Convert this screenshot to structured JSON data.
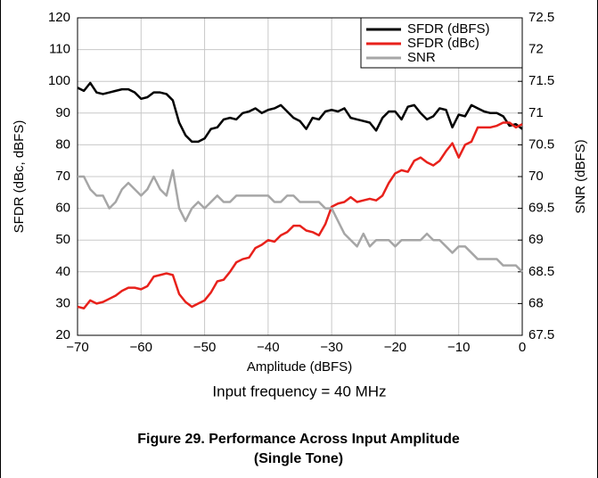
{
  "chart_data": {
    "type": "line",
    "title": "Figure 29. Performance Across Input Amplitude (Single Tone)",
    "subtitle": "Input frequency = 40 MHz",
    "xlabel": "Amplitude (dBFS)",
    "ylabel": "SFDR (dBc, dBFS)",
    "y2label": "SNR (dBFS)",
    "x": [
      -70,
      -69,
      -68,
      -67,
      -66,
      -65,
      -64,
      -63,
      -62,
      -61,
      -60,
      -59,
      -58,
      -57,
      -56,
      -55,
      -54,
      -53,
      -52,
      -51,
      -50,
      -49,
      -48,
      -47,
      -46,
      -45,
      -44,
      -43,
      -42,
      -41,
      -40,
      -39,
      -38,
      -37,
      -36,
      -35,
      -34,
      -33,
      -32,
      -31,
      -30,
      -29,
      -28,
      -27,
      -26,
      -25,
      -24,
      -23,
      -22,
      -21,
      -20,
      -19,
      -18,
      -17,
      -16,
      -15,
      -14,
      -13,
      -12,
      -11,
      -10,
      -9,
      -8,
      -7,
      -6,
      -5,
      -4,
      -3,
      -2,
      -1,
      0
    ],
    "series": [
      {
        "name": "SFDR (dBFS)",
        "color": "#000000",
        "values": [
          98,
          97,
          99.5,
          96.5,
          96,
          96.5,
          97,
          97.5,
          97.5,
          96.5,
          94.5,
          95,
          96.5,
          96.5,
          96,
          94,
          87,
          83,
          81,
          81,
          82,
          85,
          85.5,
          88,
          88.5,
          88,
          90,
          90.5,
          91.5,
          90,
          91,
          91.5,
          92.5,
          90.5,
          88.5,
          87.5,
          85,
          88.5,
          88,
          90.5,
          91,
          90.5,
          91.5,
          88.5,
          88,
          87.5,
          87,
          84.5,
          88.5,
          90.5,
          90.5,
          88,
          92,
          92.5,
          90,
          88,
          89,
          91.5,
          91,
          85.5,
          89.5,
          89,
          92.5,
          91.5,
          90.5,
          90,
          90,
          89,
          86,
          86.5,
          85
        ]
      },
      {
        "name": "SFDR (dBc)",
        "color": "#e8211b",
        "values": [
          29,
          28.5,
          31,
          30,
          30.5,
          31.5,
          32.5,
          34,
          35,
          35,
          34.5,
          35.5,
          38.5,
          39,
          39.5,
          39,
          33,
          30.5,
          29,
          30,
          31,
          33.5,
          37,
          37.5,
          40,
          43,
          44,
          44.5,
          47.5,
          48.5,
          50,
          49.5,
          51.5,
          52.5,
          54.5,
          54.5,
          53,
          52.5,
          51.5,
          55,
          60.5,
          61.5,
          62,
          63.5,
          62,
          62.5,
          63,
          62.5,
          64,
          68,
          71,
          72,
          71.5,
          75,
          76,
          74.5,
          73.5,
          75,
          78,
          80.5,
          76,
          80,
          81,
          85.5,
          85.5,
          85.5,
          86,
          87,
          87,
          85.5,
          86.5
        ]
      },
      {
        "name": "SNR",
        "color": "#a6a6a6",
        "axis": "y2",
        "values": [
          70,
          70,
          69.8,
          69.7,
          69.7,
          69.5,
          69.6,
          69.8,
          69.9,
          69.8,
          69.7,
          69.8,
          70,
          69.8,
          69.7,
          70.1,
          69.5,
          69.3,
          69.5,
          69.6,
          69.5,
          69.6,
          69.7,
          69.6,
          69.6,
          69.7,
          69.7,
          69.7,
          69.7,
          69.7,
          69.7,
          69.6,
          69.6,
          69.7,
          69.7,
          69.6,
          69.6,
          69.6,
          69.6,
          69.5,
          69.5,
          69.3,
          69.1,
          69,
          68.9,
          69.1,
          68.9,
          69,
          69,
          69,
          68.9,
          69,
          69,
          69,
          69,
          69.1,
          69,
          69,
          68.9,
          68.8,
          68.9,
          68.9,
          68.8,
          68.7,
          68.7,
          68.7,
          68.7,
          68.6,
          68.6,
          68.6,
          68.5
        ]
      }
    ],
    "xlim": [
      -70,
      0
    ],
    "xticks": [
      {
        "value": -70,
        "label": "−70"
      },
      {
        "value": -60,
        "label": "−60"
      },
      {
        "value": -50,
        "label": "−50"
      },
      {
        "value": -40,
        "label": "−40"
      },
      {
        "value": -30,
        "label": "−30"
      },
      {
        "value": -20,
        "label": "−20"
      },
      {
        "value": -10,
        "label": "−10"
      },
      0
    ],
    "ylim": [
      20,
      120
    ],
    "yticks": [
      20,
      30,
      40,
      50,
      60,
      70,
      80,
      90,
      100,
      110,
      120
    ],
    "y2lim": [
      67.5,
      72.5
    ],
    "y2ticks": [
      67.5,
      68,
      68.5,
      69,
      69.5,
      70,
      70.5,
      71,
      71.5,
      72,
      72.5
    ],
    "grid": true,
    "legend": "upper right"
  }
}
